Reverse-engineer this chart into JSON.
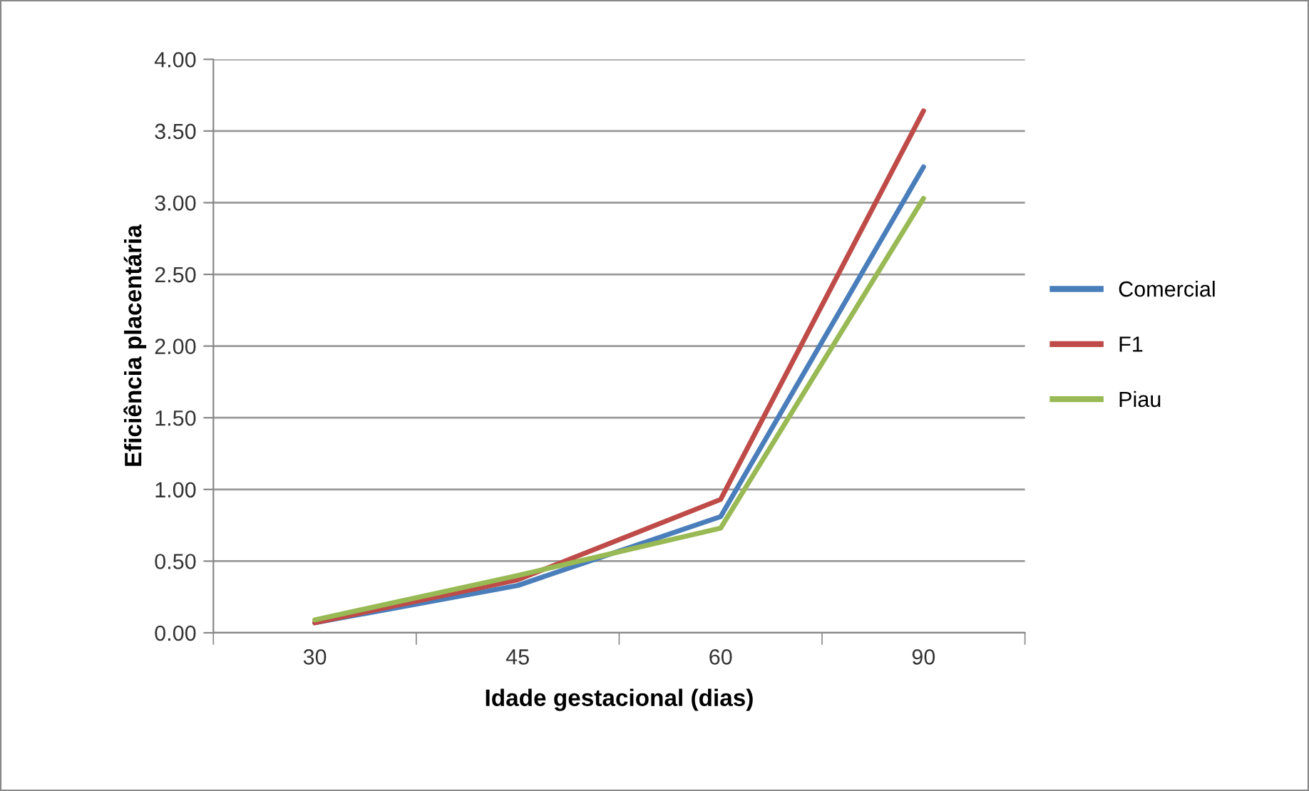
{
  "chart_data": {
    "type": "line",
    "xlabel": "Idade gestacional (dias)",
    "ylabel": "Eficiência placentária",
    "categories": [
      "30",
      "45",
      "60",
      "90"
    ],
    "series": [
      {
        "name": "Comercial",
        "color": "#4a7ebb",
        "values": [
          0.07,
          0.33,
          0.81,
          3.25
        ]
      },
      {
        "name": "F1",
        "color": "#be4b48",
        "values": [
          0.07,
          0.37,
          0.93,
          3.64
        ]
      },
      {
        "name": "Piau",
        "color": "#98b954",
        "values": [
          0.09,
          0.4,
          0.73,
          3.03
        ]
      }
    ],
    "ylim": [
      0,
      4
    ],
    "yticks": [
      {
        "value": 0,
        "label": "0.00"
      },
      {
        "value": 0.5,
        "label": "0.50"
      },
      {
        "value": 1,
        "label": "1.00"
      },
      {
        "value": 1.5,
        "label": "1.50"
      },
      {
        "value": 2,
        "label": "2.00"
      },
      {
        "value": 2.5,
        "label": "2.50"
      },
      {
        "value": 3,
        "label": "3.00"
      },
      {
        "value": 3.5,
        "label": "3.50"
      },
      {
        "value": 4,
        "label": "4.00"
      }
    ],
    "grid": "y",
    "legend": "right",
    "marker": "none",
    "line_style": "solid"
  }
}
